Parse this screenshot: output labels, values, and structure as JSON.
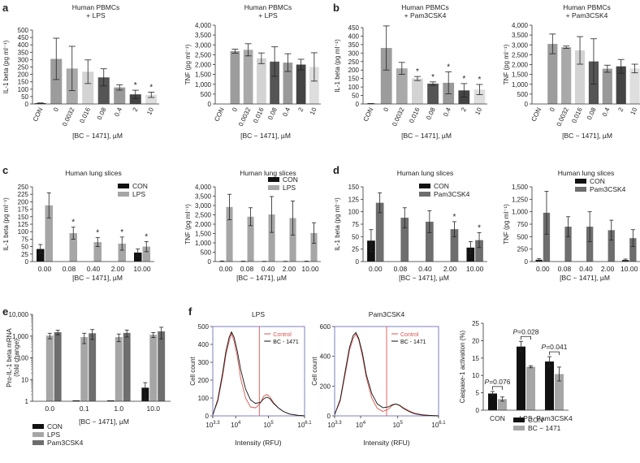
{
  "colors": {
    "black": "#111111",
    "grey_light": "#a6a6a6",
    "grey_dark": "#6e6e6e",
    "red": "#d9534f",
    "frame": "#7f7fbf"
  },
  "legends": {
    "con_lps": [
      "CON",
      "LPS"
    ],
    "con_pam": [
      "CON",
      "Pam3CSK4"
    ],
    "e": [
      "CON",
      "LPS",
      "Pam3CSK4"
    ],
    "f_hist": [
      "Control",
      "BC - 1471"
    ],
    "f_bar": [
      "CON",
      "BC − 1471"
    ]
  },
  "chart_data": [
    {
      "id": "a1",
      "panel_letter": "a",
      "type": "bar",
      "title": "Human PBMCs\n+ LPS",
      "ylabel": "IL-1 beta (pg ml⁻¹)",
      "xlabel": "[BC − 1471], µM",
      "ylim": [
        0,
        500
      ],
      "yticks": [
        "0",
        "50",
        "100",
        "150",
        "200",
        "250",
        "300",
        "350",
        "400",
        "450",
        "500"
      ],
      "categories": [
        "CON",
        "0",
        "0.0032",
        "0.016",
        "0.08",
        "0.4",
        "2",
        "10"
      ],
      "values": [
        5,
        305,
        240,
        218,
        180,
        112,
        65,
        62
      ],
      "errors": [
        2,
        140,
        150,
        80,
        58,
        18,
        28,
        18
      ],
      "stars": [
        "",
        "",
        "",
        "",
        "",
        "",
        "*",
        "*"
      ]
    },
    {
      "id": "a2",
      "type": "bar",
      "title": "Human PBMCs\n+ LPS",
      "ylabel": "TNF (pg ml⁻¹)",
      "xlabel": "[BC − 1471], µM",
      "ylim": [
        0,
        4000
      ],
      "yticks": [
        "0",
        "500",
        "1,000",
        "1,500",
        "2,000",
        "2,500",
        "3,000",
        "3,500",
        "4,000"
      ],
      "categories": [
        "CON",
        "0",
        "0.0032",
        "0.016",
        "0.08",
        "0.4",
        "2",
        "10"
      ],
      "values": [
        0,
        2680,
        2750,
        2320,
        2150,
        2100,
        2000,
        1880
      ],
      "errors": [
        0,
        100,
        310,
        270,
        750,
        450,
        270,
        720
      ],
      "stars": [
        "",
        "",
        "",
        "",
        "",
        "",
        "",
        ""
      ]
    },
    {
      "id": "b1",
      "panel_letter": "b",
      "type": "bar",
      "title": "Human PBMCs\n+ Pam3CSK4",
      "ylabel": "IL-1 beta (pg ml⁻¹)",
      "xlabel": "[BC − 1471], µM",
      "ylim": [
        0,
        450
      ],
      "yticks": [
        "0",
        "50",
        "100",
        "150",
        "200",
        "250",
        "300",
        "350",
        "400",
        "450"
      ],
      "categories": [
        "CON",
        "0",
        "0.0032",
        "0.016",
        "0.08",
        "0.4",
        "2",
        "10"
      ],
      "values": [
        2,
        330,
        210,
        150,
        120,
        125,
        80,
        85
      ],
      "errors": [
        1,
        130,
        35,
        12,
        10,
        65,
        40,
        30
      ],
      "stars": [
        "",
        "",
        "",
        "*",
        "*",
        "*",
        "*",
        "*"
      ]
    },
    {
      "id": "b2",
      "type": "bar",
      "title": "Human PBMCs\n+ Pam3CSK4",
      "ylabel": "TNF (pg ml⁻¹)",
      "xlabel": "[BC − 1471], µM",
      "ylim": [
        0,
        4000
      ],
      "yticks": [
        "0",
        "500",
        "1,000",
        "1,500",
        "2,000",
        "2,500",
        "3,000",
        "3,500",
        "4,000"
      ],
      "categories": [
        "CON",
        "0",
        "0.0032",
        "0.016",
        "0.08",
        "0.4",
        "2",
        "10"
      ],
      "values": [
        0,
        3050,
        2880,
        2720,
        2160,
        1790,
        1910,
        1800
      ],
      "errors": [
        0,
        500,
        60,
        700,
        1150,
        180,
        350,
        220
      ],
      "stars": [
        "",
        "",
        "",
        "",
        "",
        "",
        "",
        ""
      ]
    },
    {
      "id": "c1",
      "panel_letter": "c",
      "type": "grouped-bar",
      "title": "Human lung slices",
      "ylabel": "IL-1 beta (pg ml⁻¹)",
      "xlabel": "[BC − 1471], µM",
      "ylim": [
        0,
        250
      ],
      "yticks": [
        "0",
        "25",
        "50",
        "75",
        "100",
        "125",
        "150",
        "175",
        "200",
        "225",
        "250"
      ],
      "categories": [
        "0.00",
        "0.08",
        "0.40",
        "2.00",
        "10.00"
      ],
      "legend": "con_lps",
      "legend_pos": "top-right",
      "series": [
        {
          "name": "CON",
          "values": [
            42,
            null,
            null,
            null,
            30
          ],
          "errors": [
            15,
            null,
            null,
            null,
            12
          ]
        },
        {
          "name": "LPS",
          "values": [
            188,
            95,
            65,
            60,
            50
          ],
          "errors": [
            42,
            20,
            15,
            22,
            17
          ]
        }
      ],
      "stars": [
        "",
        "*",
        "*",
        "*",
        "*"
      ]
    },
    {
      "id": "c2",
      "type": "grouped-bar",
      "title": "Human lung slices",
      "ylabel": "TNF (pg ml⁻¹)",
      "xlabel": "[BC − 1471], µM",
      "ylim": [
        0,
        4000
      ],
      "yticks": [
        "0",
        "500",
        "1,000",
        "1,500",
        "2,000",
        "2,500",
        "3,000",
        "3,500",
        "4,000"
      ],
      "categories": [
        "0.00",
        "0.08",
        "0.40",
        "2.00",
        "10.00"
      ],
      "legend": "con_lps",
      "legend_pos": "top-right",
      "series": [
        {
          "name": "CON",
          "values": [
            20,
            15,
            10,
            10,
            15
          ],
          "errors": [
            10,
            8,
            6,
            6,
            8
          ]
        },
        {
          "name": "LPS",
          "values": [
            2920,
            2400,
            2520,
            2330,
            1530
          ],
          "errors": [
            680,
            480,
            960,
            910,
            550
          ]
        }
      ],
      "stars": [
        "",
        "",
        "",
        "",
        ""
      ]
    },
    {
      "id": "d1",
      "panel_letter": "d",
      "type": "grouped-bar",
      "title": "Human lung slices",
      "ylabel": "IL-1 beta (pg ml⁻¹)",
      "xlabel": "[BC − 1471], µM",
      "ylim": [
        0,
        150
      ],
      "yticks": [
        "0",
        "25",
        "50",
        "75",
        "100",
        "125",
        "150"
      ],
      "categories": [
        "0.00",
        "0.08",
        "0.40",
        "2.00",
        "10.00"
      ],
      "legend": "con_pam",
      "legend_pos": "top-right",
      "series": [
        {
          "name": "CON",
          "values": [
            42,
            null,
            null,
            null,
            28
          ],
          "errors": [
            22,
            null,
            null,
            null,
            12
          ]
        },
        {
          "name": "Pam3CSK4",
          "values": [
            118,
            88,
            80,
            65,
            43
          ],
          "errors": [
            20,
            20,
            22,
            15,
            15
          ]
        }
      ],
      "stars": [
        "",
        "",
        "",
        "*",
        "*"
      ]
    },
    {
      "id": "d2",
      "type": "grouped-bar",
      "title": "Human lung slices",
      "ylabel": "TNF (pg ml⁻¹)",
      "xlabel": "[BC − 1471], µM",
      "ylim": [
        0,
        1500
      ],
      "yticks": [
        "0",
        "250",
        "500",
        "750",
        "1,000",
        "1,250",
        "1,500"
      ],
      "categories": [
        "0.00",
        "0.08",
        "0.40",
        "2.00",
        "10.00"
      ],
      "legend": "con_pam",
      "legend_pos": "top-right",
      "series": [
        {
          "name": "CON",
          "values": [
            35,
            null,
            null,
            null,
            30
          ],
          "errors": [
            20,
            null,
            null,
            null,
            20
          ]
        },
        {
          "name": "Pam3CSK4",
          "values": [
            980,
            700,
            700,
            630,
            470
          ],
          "errors": [
            430,
            200,
            300,
            200,
            170
          ]
        }
      ],
      "stars": [
        "",
        "",
        "",
        "",
        ""
      ]
    },
    {
      "id": "e",
      "panel_letter": "e",
      "type": "grouped-bar-log",
      "ylabel": "Pro-IL-1 beta mRNA\n(fold change)",
      "xlabel": "[BC − 1471], µM",
      "ylim": [
        1,
        10000
      ],
      "yticks": [
        "1",
        "10",
        "100",
        "1,000",
        "10,000"
      ],
      "categories": [
        "0.0",
        "0.1",
        "1.0",
        "10.0"
      ],
      "legend": "e",
      "legend_pos": "bottom",
      "series": [
        {
          "name": "CON",
          "values": [
            1,
            1.1,
            1.1,
            4.2
          ],
          "errors": [
            0,
            0,
            0,
            3
          ]
        },
        {
          "name": "LPS",
          "values": [
            1050,
            900,
            900,
            1150
          ],
          "errors": [
            300,
            450,
            350,
            300
          ]
        },
        {
          "name": "Pam3CSK4",
          "values": [
            1500,
            1350,
            1400,
            1650
          ],
          "errors": [
            350,
            650,
            500,
            900
          ]
        }
      ]
    },
    {
      "id": "f1",
      "panel_letter": "f",
      "type": "line",
      "title": "LPS",
      "ylabel": "Cell count",
      "xlabel": "Intensity (RFU)",
      "ylim": [
        0,
        500
      ],
      "yticks": [
        "0",
        "100",
        "200",
        "300",
        "400",
        "500"
      ],
      "xlim": [
        3.3,
        6.1
      ],
      "xticks": [
        {
          "v": 3.3,
          "b": "10",
          "s": "3.3"
        },
        {
          "v": 4,
          "b": "10",
          "s": "4"
        },
        {
          "v": 5,
          "b": "10",
          "s": "5"
        },
        {
          "v": 6.1,
          "b": "10",
          "s": "6.1"
        }
      ],
      "gate": 4.72,
      "legend": "f_hist",
      "series": [
        {
          "name": "Control",
          "x": [
            3.3,
            3.45,
            3.6,
            3.7,
            3.8,
            3.87,
            3.95,
            4.05,
            4.15,
            4.3,
            4.45,
            4.6,
            4.75,
            4.85,
            4.95,
            5.05,
            5.15,
            5.3,
            5.45,
            5.65,
            5.9,
            6.1
          ],
          "y": [
            8,
            80,
            220,
            340,
            420,
            460,
            420,
            330,
            210,
            100,
            50,
            45,
            70,
            110,
            120,
            105,
            75,
            45,
            25,
            10,
            3,
            0
          ]
        },
        {
          "name": "BC - 1471",
          "x": [
            3.3,
            3.45,
            3.6,
            3.7,
            3.8,
            3.87,
            3.95,
            4.05,
            4.15,
            4.3,
            4.45,
            4.6,
            4.75,
            4.85,
            4.95,
            5.05,
            5.15,
            5.3,
            5.45,
            5.65,
            5.9,
            6.1
          ],
          "y": [
            5,
            90,
            240,
            360,
            440,
            470,
            440,
            360,
            260,
            150,
            90,
            70,
            75,
            95,
            105,
            95,
            70,
            45,
            25,
            10,
            3,
            0
          ]
        }
      ]
    },
    {
      "id": "f2",
      "type": "line",
      "title": "Pam3CSK4",
      "ylabel": "Cell count",
      "xlabel": "Intensity (RFU)",
      "ylim": [
        0,
        600
      ],
      "yticks": [
        "0",
        "200",
        "400",
        "600"
      ],
      "xlim": [
        3.3,
        6.1
      ],
      "xticks": [
        {
          "v": 3.3,
          "b": "10",
          "s": "3.3"
        },
        {
          "v": 4,
          "b": "10",
          "s": "4"
        },
        {
          "v": 5,
          "b": "10",
          "s": "5"
        },
        {
          "v": 6.1,
          "b": "10",
          "s": "6.1"
        }
      ],
      "gate": 4.7,
      "legend": "f_hist",
      "series": [
        {
          "name": "Control",
          "x": [
            3.3,
            3.45,
            3.6,
            3.7,
            3.8,
            3.87,
            3.95,
            4.05,
            4.15,
            4.3,
            4.45,
            4.6,
            4.75,
            4.85,
            4.95,
            5.05,
            5.15,
            5.3,
            5.45,
            5.65,
            5.9,
            6.1
          ],
          "y": [
            10,
            100,
            300,
            440,
            520,
            550,
            510,
            400,
            260,
            120,
            50,
            30,
            45,
            70,
            80,
            72,
            55,
            35,
            18,
            8,
            2,
            0
          ]
        },
        {
          "name": "BC - 1471",
          "x": [
            3.3,
            3.45,
            3.6,
            3.7,
            3.8,
            3.87,
            3.95,
            4.05,
            4.15,
            4.3,
            4.45,
            4.6,
            4.75,
            4.85,
            4.95,
            5.05,
            5.15,
            5.3,
            5.45,
            5.65,
            5.9,
            6.1
          ],
          "y": [
            8,
            110,
            320,
            460,
            540,
            560,
            520,
            420,
            280,
            150,
            80,
            55,
            60,
            75,
            80,
            70,
            50,
            30,
            15,
            6,
            2,
            0
          ]
        }
      ]
    },
    {
      "id": "f3",
      "type": "grouped-bar",
      "ylabel": "Caspase-1 activation (%)",
      "ylim": [
        0,
        25
      ],
      "yticks": [
        "0",
        "5",
        "10",
        "15",
        "20",
        "25"
      ],
      "categories": [
        "CON",
        "LPS",
        "Pam3CSK4"
      ],
      "legend": "f_bar",
      "legend_pos": "bottom",
      "series": [
        {
          "name": "CON",
          "values": [
            4.8,
            18.3,
            14
          ],
          "errors": [
            0.6,
            1.5,
            1.4
          ]
        },
        {
          "name": "BC − 1471",
          "values": [
            3.2,
            12.5,
            10.4
          ],
          "errors": [
            0.6,
            0.3,
            2.0
          ]
        }
      ],
      "pvalues": [
        "P=0.076",
        "P=0.028",
        "P=0.041"
      ]
    }
  ]
}
